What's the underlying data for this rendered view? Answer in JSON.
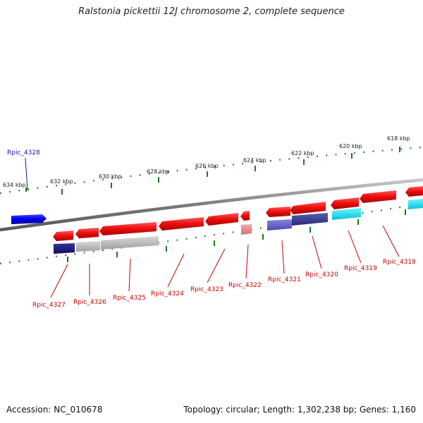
{
  "title": "Ralstonia pickettii 12J chromosome 2, complete sequence",
  "footer": {
    "accession": "Accession: NC_010678",
    "info": "Topology: circular; Length: 1,302,238 bp; Genes: 1,160"
  },
  "scale_labels": [
    "634 kbp",
    "632 kbp",
    "630 kbp",
    "628 kbp",
    "626 kbp",
    "624 kbp",
    "622 kbp",
    "620 kbp",
    "618 kbp"
  ],
  "gene_labels": [
    "Rpic_4328",
    "Rpic_4327",
    "Rpic_4326",
    "Rpic_4325",
    "Rpic_4324",
    "Rpic_4323",
    "Rpic_4322",
    "Rpic_4321",
    "Rpic_4320",
    "Rpic_4319",
    "Rpic_4318"
  ],
  "colors": {
    "backbone": "#808080",
    "ticks": "#1a7a1a",
    "gene_red": "#e01010",
    "gene_blue": "#0000ee",
    "label_red": "#cc0000",
    "label_blue": "#1010c0",
    "box_navy": "#1a1a80",
    "box_grey": "#b4b4b4",
    "box_slate": "#6a62c8",
    "box_darkslate": "#3a3a90",
    "box_cyan": "#00e0f0",
    "box_pink": "#e88888"
  }
}
